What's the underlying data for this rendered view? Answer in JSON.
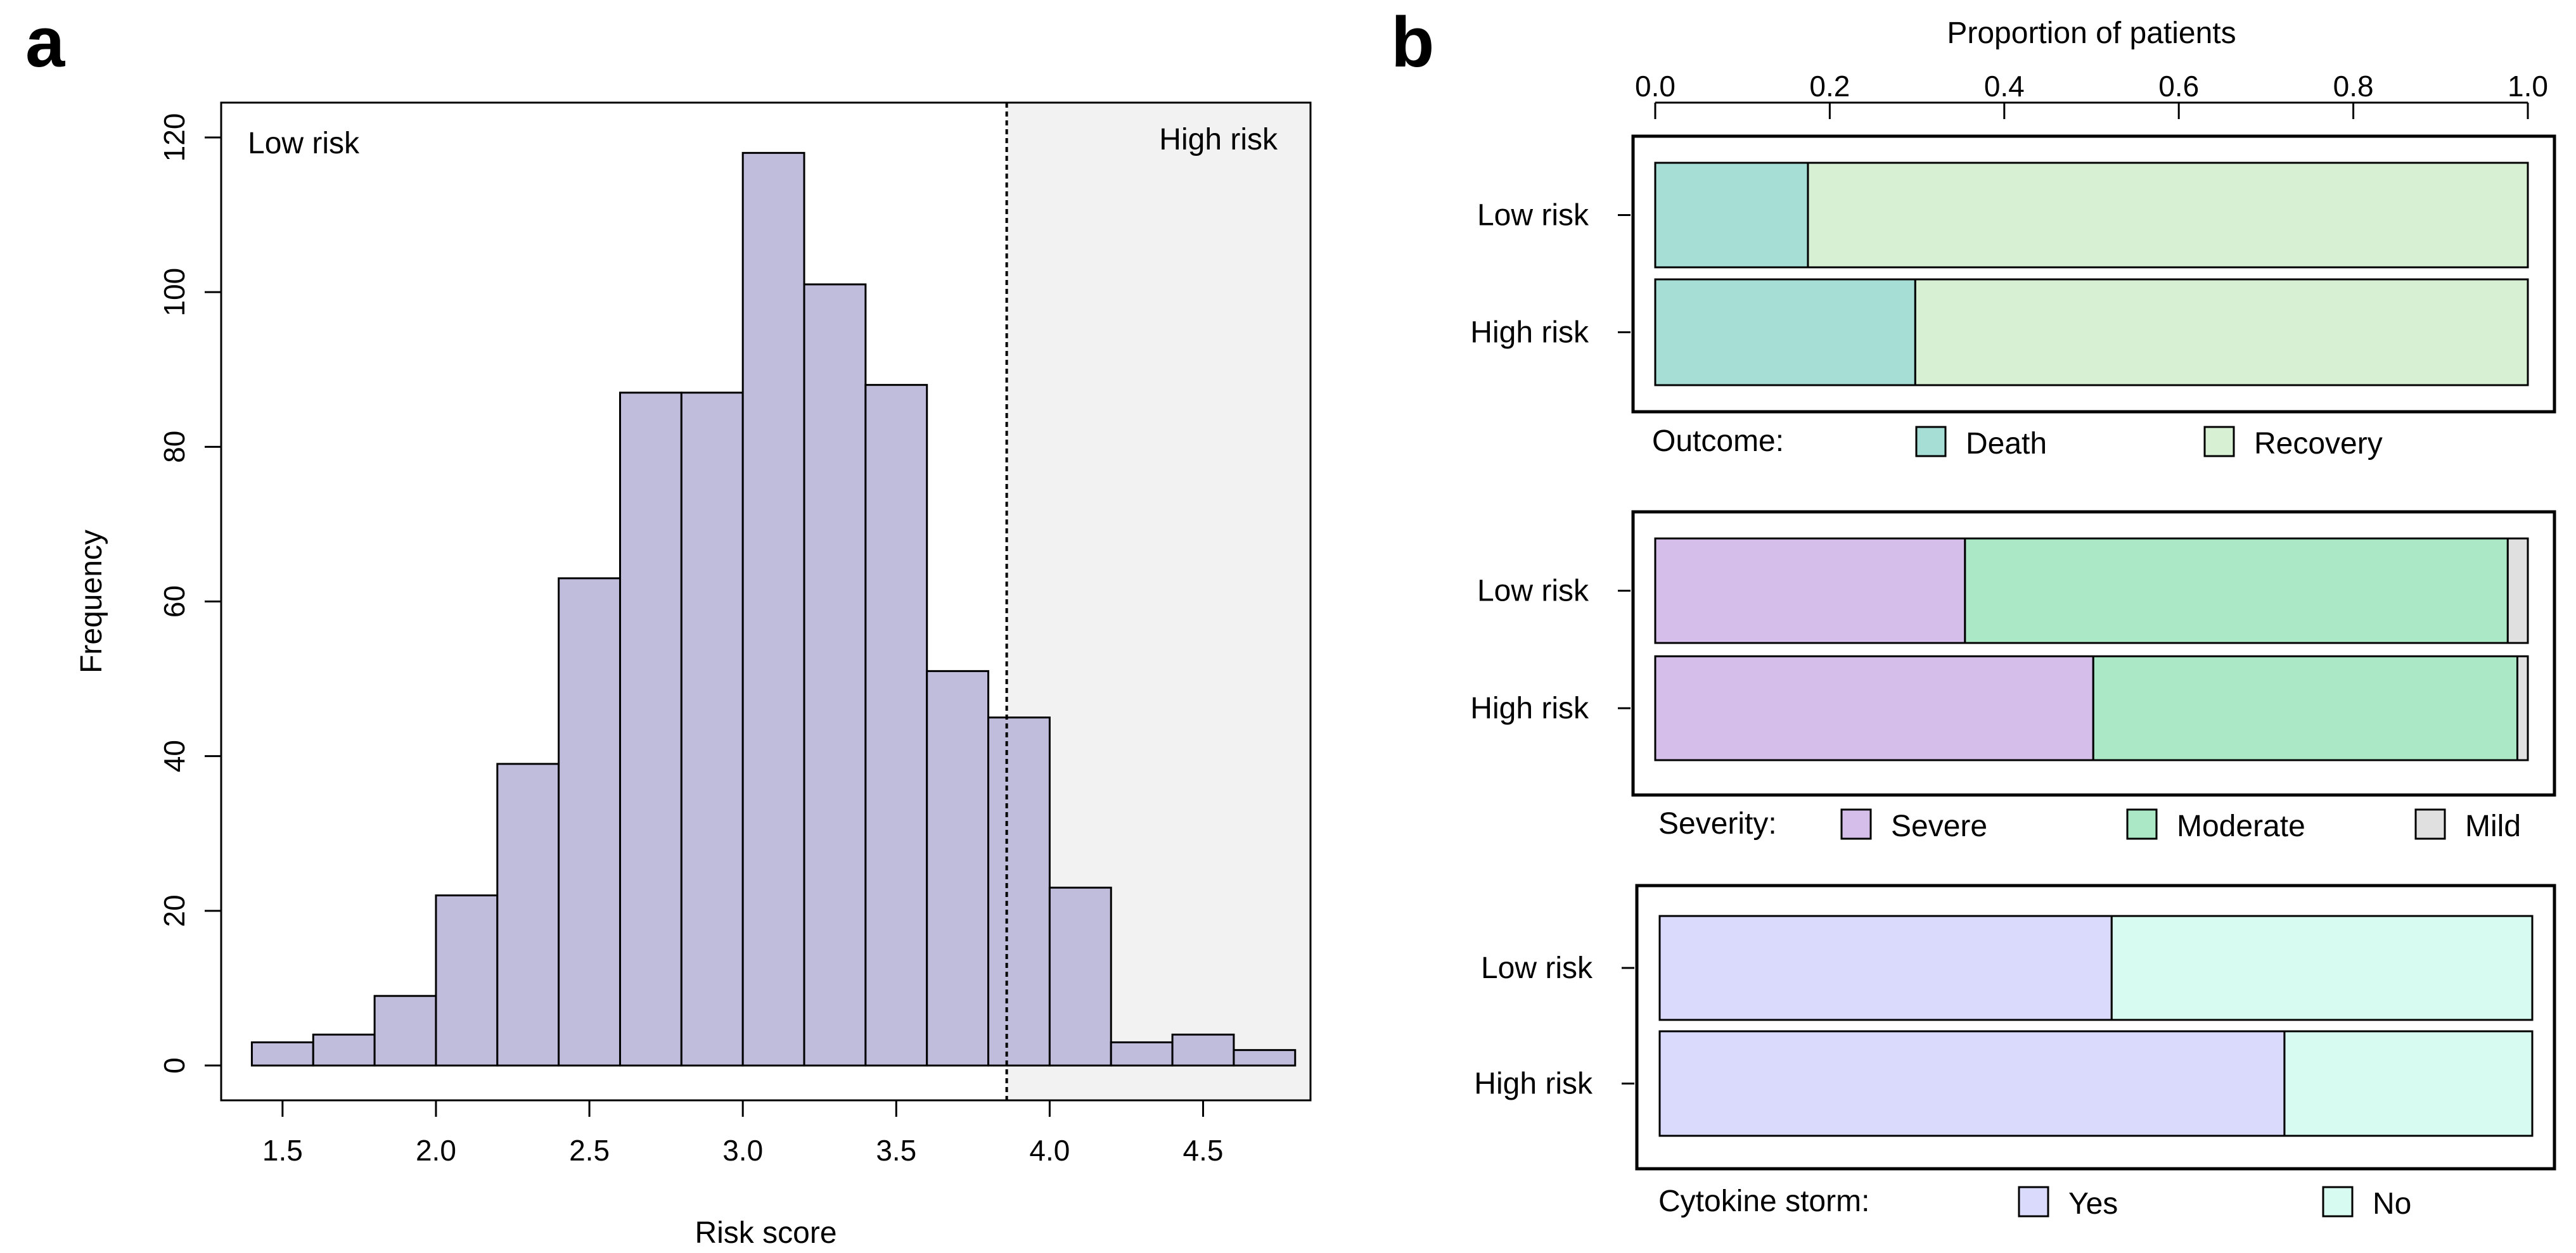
{
  "panels": {
    "a": "a",
    "b": "b"
  },
  "colors": {
    "hist_bar": "#bfbcdc",
    "high_risk_region": "#f2f2f2",
    "death": "#a6ded6",
    "recovery": "#d7efd2",
    "severe": "#d5bee9",
    "moderate": "#abe9c6",
    "mild": "#e0e0e0",
    "yes": "#d9dafc",
    "no": "#d8fbf1"
  },
  "chart_data": [
    {
      "type": "bar",
      "subtype": "histogram",
      "panel": "a",
      "xlabel": "Risk score",
      "ylabel": "Frequency",
      "bin_edges": [
        1.4,
        1.6,
        1.8,
        2.0,
        2.2,
        2.4,
        2.6,
        2.8,
        3.0,
        3.2,
        3.4,
        3.6,
        3.8,
        4.0,
        4.2,
        4.4,
        4.6,
        4.8
      ],
      "values": [
        3,
        4,
        9,
        22,
        39,
        63,
        87,
        87,
        118,
        101,
        88,
        51,
        45,
        23,
        3,
        4,
        2
      ],
      "xlim": [
        1.3,
        4.85
      ],
      "ylim": [
        -4.5,
        124.5
      ],
      "xticks": [
        1.5,
        2.0,
        2.5,
        3.0,
        3.5,
        4.0,
        4.5
      ],
      "xtick_labels": [
        "1.5",
        "2.0",
        "2.5",
        "3.0",
        "3.5",
        "4.0",
        "4.5"
      ],
      "yticks": [
        0,
        20,
        40,
        60,
        80,
        100,
        120
      ],
      "ytick_labels": [
        "0",
        "20",
        "40",
        "60",
        "80",
        "100",
        "120"
      ],
      "threshold": 3.86,
      "region_labels": {
        "low": "Low risk",
        "high": "High risk"
      }
    },
    {
      "type": "bar",
      "subtype": "stacked-horizontal",
      "panel": "b",
      "xlabel": "Proportion of patients",
      "xlim": [
        0,
        1
      ],
      "xticks": [
        0,
        0.2,
        0.4,
        0.6,
        0.8,
        1.0
      ],
      "xtick_labels": [
        "0.0",
        "0.2",
        "0.4",
        "0.6",
        "0.8",
        "1.0"
      ],
      "groups": [
        {
          "legend_title": "Outcome:",
          "categories": [
            "Low risk",
            "High risk"
          ],
          "series": [
            {
              "name": "Death",
              "values": [
                0.175,
                0.298
              ]
            },
            {
              "name": "Recovery",
              "values": [
                0.825,
                0.702
              ]
            }
          ]
        },
        {
          "legend_title": "Severity:",
          "categories": [
            "Low risk",
            "High risk"
          ],
          "series": [
            {
              "name": "Severe",
              "values": [
                0.355,
                0.502
              ]
            },
            {
              "name": "Moderate",
              "values": [
                0.622,
                0.486
              ]
            },
            {
              "name": "Mild",
              "values": [
                0.023,
                0.012
              ]
            }
          ]
        },
        {
          "legend_title": "Cytokine storm:",
          "categories": [
            "Low risk",
            "High risk"
          ],
          "series": [
            {
              "name": "Yes",
              "values": [
                0.518,
                0.716
              ]
            },
            {
              "name": "No",
              "values": [
                0.482,
                0.284
              ]
            }
          ]
        }
      ]
    }
  ]
}
